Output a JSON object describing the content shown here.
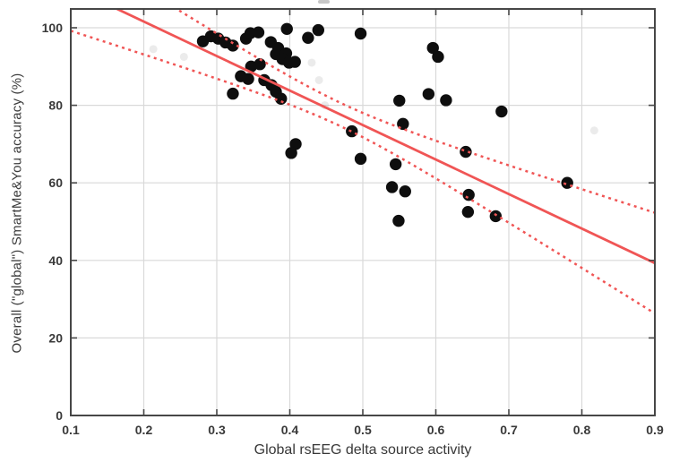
{
  "chart_data": {
    "type": "scatter",
    "title": "",
    "xlabel": "Global rsEEG delta source activity",
    "ylabel": "Overall (\"global\") SmartMe&You accuracy (%)",
    "xlim": [
      0.1,
      0.9
    ],
    "ylim": [
      0,
      104.85
    ],
    "grid": true,
    "x_ticks": [
      0.1,
      0.2,
      0.3,
      0.4,
      0.5,
      0.6,
      0.7,
      0.8,
      0.9
    ],
    "x_tick_labels": [
      "0.1",
      "0.2",
      "0.3",
      "0.4",
      "0.5",
      "0.6",
      "0.7",
      "0.8",
      "0.9"
    ],
    "y_ticks": [
      0,
      20,
      40,
      60,
      80,
      100
    ],
    "y_tick_labels": [
      "0",
      "20",
      "40",
      "60",
      "80",
      "100"
    ],
    "n_points": 48,
    "points": [
      [
        0.281,
        96.5
      ],
      [
        0.292,
        97.8
      ],
      [
        0.302,
        97.2
      ],
      [
        0.312,
        96.2
      ],
      [
        0.322,
        95.4
      ],
      [
        0.34,
        97.2
      ],
      [
        0.346,
        98.6
      ],
      [
        0.357,
        98.8
      ],
      [
        0.396,
        99.7
      ],
      [
        0.425,
        97.4
      ],
      [
        0.439,
        99.4
      ],
      [
        0.497,
        98.5
      ],
      [
        0.596,
        94.8
      ],
      [
        0.603,
        92.5
      ],
      [
        0.374,
        96.3
      ],
      [
        0.384,
        94.8
      ],
      [
        0.381,
        93.2
      ],
      [
        0.395,
        93.4
      ],
      [
        0.39,
        91.9
      ],
      [
        0.399,
        91.0
      ],
      [
        0.407,
        91.2
      ],
      [
        0.347,
        90.0
      ],
      [
        0.359,
        90.6
      ],
      [
        0.333,
        87.5
      ],
      [
        0.343,
        86.8
      ],
      [
        0.365,
        86.5
      ],
      [
        0.375,
        85.2
      ],
      [
        0.381,
        83.5
      ],
      [
        0.388,
        81.7
      ],
      [
        0.322,
        83.0
      ],
      [
        0.55,
        81.2
      ],
      [
        0.59,
        82.9
      ],
      [
        0.614,
        81.3
      ],
      [
        0.69,
        78.4
      ],
      [
        0.555,
        75.2
      ],
      [
        0.485,
        73.3
      ],
      [
        0.408,
        70.0
      ],
      [
        0.402,
        67.7
      ],
      [
        0.497,
        66.2
      ],
      [
        0.545,
        64.8
      ],
      [
        0.641,
        68.0
      ],
      [
        0.54,
        58.9
      ],
      [
        0.558,
        57.8
      ],
      [
        0.78,
        60.0
      ],
      [
        0.645,
        56.9
      ],
      [
        0.644,
        52.5
      ],
      [
        0.682,
        51.4
      ],
      [
        0.549,
        50.2
      ]
    ],
    "regression": {
      "solid_line": {
        "slope": -89.0,
        "intercept": 119.4,
        "x_start": 0.1,
        "x_end": 0.9,
        "y_at_x_start": 110.5,
        "y_at_x_end": 39.3
      },
      "confidence_band": {
        "style": "dashed",
        "center_x": 0.47,
        "min_half_width": 3.0,
        "curvature": 865
      }
    },
    "faint_artifacts": [
      [
        0.213,
        94.5
      ],
      [
        0.255,
        92.5
      ],
      [
        0.43,
        91.0
      ],
      [
        0.44,
        86.5
      ],
      [
        0.448,
        80.0
      ],
      [
        0.817,
        73.5
      ]
    ],
    "colors": {
      "points": "#0e0e0e",
      "line": "#f05555",
      "grid": "#d9d9d9",
      "axis": "#474747",
      "text": "#3a3a3a"
    }
  }
}
